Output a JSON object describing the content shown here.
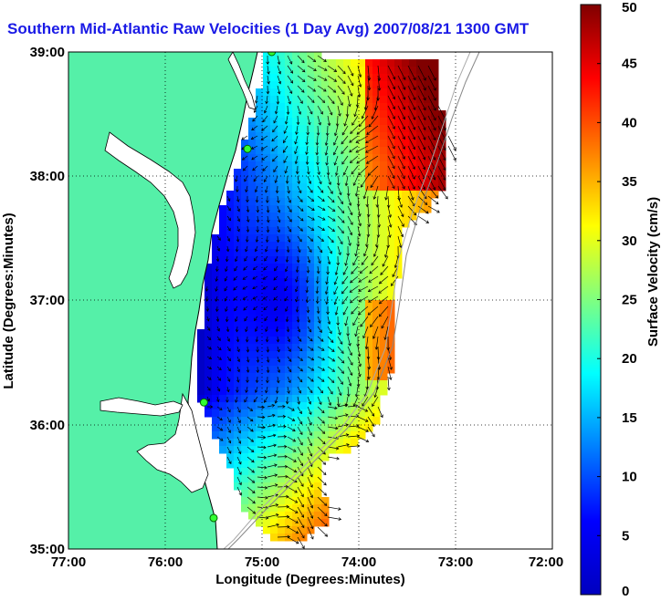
{
  "title": "Southern Mid-Atlantic Raw Velocities (1 Day Avg) 2007/08/21 1300 GMT",
  "xlabel": "Longitude (Degrees:Minutes)",
  "ylabel": "Latitude (Degrees:Minutes)",
  "x_ticks": [
    "77:00",
    "76:00",
    "75:00",
    "74:00",
    "73:00",
    "72:00"
  ],
  "y_ticks": [
    "39:00",
    "38:00",
    "37:00",
    "36:00",
    "35:00"
  ],
  "colorbar": {
    "label": "Surface Velocity (cm/s)",
    "ticks": [
      "0",
      "5",
      "10",
      "15",
      "20",
      "25",
      "30",
      "35",
      "40",
      "45",
      "50"
    ],
    "range": [
      0,
      50
    ],
    "colormap": "jet"
  },
  "colors": {
    "land": "#55f0a8",
    "coast_line": "#000000",
    "title": "#1a1ae6",
    "arrow": "#000000"
  },
  "map_extent": {
    "lon": [
      -77,
      -72
    ],
    "lat": [
      35,
      39
    ]
  },
  "stations": [
    {
      "lon": -74.9,
      "lat": 39.0
    },
    {
      "lon": -75.15,
      "lat": 38.22
    },
    {
      "lon": -75.6,
      "lat": 36.18
    },
    {
      "lon": -75.5,
      "lat": 35.25
    }
  ],
  "grid": true
}
